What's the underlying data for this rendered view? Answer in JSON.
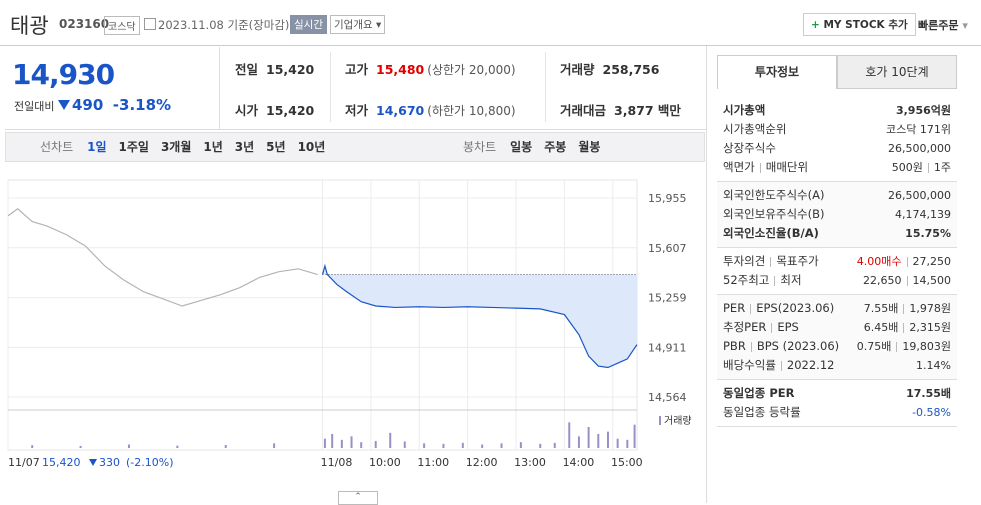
{
  "header": {
    "name": "태광",
    "code": "023160",
    "market": "코스닥",
    "date": "2023.11.08",
    "basis": "기준(장마감)",
    "realtime": "실시간",
    "company_info": "기업개요",
    "my_stock": "MY STOCK 추가",
    "quick_order": "빠른주문"
  },
  "quote": {
    "price": "14,930",
    "change_label": "전일대비",
    "change": "490",
    "change_pct": "-3.18%"
  },
  "summary": [
    [
      {
        "label": "전일",
        "value": "15,420"
      },
      {
        "label": "시가",
        "value": "15,420"
      }
    ],
    [
      {
        "label": "고가",
        "value": "15,480",
        "note": "(상한가 20,000)",
        "color": "#e00000"
      },
      {
        "label": "저가",
        "value": "14,670",
        "note": "(하한가 10,800)",
        "color": "#1a55c8"
      }
    ],
    [
      {
        "label": "거래량",
        "value": "258,756"
      },
      {
        "label": "거래대금",
        "value": "3,877 백만"
      }
    ]
  ],
  "chart_tabs": {
    "line_label": "선차트",
    "line_periods": [
      "1일",
      "1주일",
      "3개월",
      "1년",
      "3년",
      "5년",
      "10년"
    ],
    "candle_label": "봉차트",
    "candle_periods": [
      "일봉",
      "주봉",
      "월봉"
    ]
  },
  "chart_data": {
    "type": "line",
    "ylim": [
      14508,
      16011
    ],
    "yticks": [
      {
        "value": 15955,
        "label": "15,955"
      },
      {
        "value": 15607,
        "label": "15,607"
      },
      {
        "value": 15259,
        "label": "15,259"
      },
      {
        "value": 14911,
        "label": "14,911"
      },
      {
        "value": 14564,
        "label": "14,564"
      }
    ],
    "xlim": [
      0,
      13
    ],
    "xticks": [
      {
        "value": 0,
        "label": "11/07"
      },
      {
        "value": 6.5,
        "label": "11/08"
      },
      {
        "value": 7.5,
        "label": "10:00"
      },
      {
        "value": 8.5,
        "label": "11:00"
      },
      {
        "value": 9.5,
        "label": "12:00"
      },
      {
        "value": 10.5,
        "label": "13:00"
      },
      {
        "value": 11.5,
        "label": "14:00"
      },
      {
        "value": 12.5,
        "label": "15:00"
      }
    ],
    "grid": true,
    "reference_line": 15420,
    "fill_color": "#dde9fa",
    "series": [
      {
        "color": "#b4b4b4",
        "x": [
          0,
          0.2,
          0.5,
          0.8,
          1.2,
          1.6,
          2.0,
          2.4,
          2.8,
          3.2,
          3.6,
          4.0,
          4.4,
          4.8,
          5.2,
          5.6,
          6.0,
          6.4
        ],
        "values": [
          15830,
          15880,
          15790,
          15760,
          15700,
          15620,
          15480,
          15380,
          15300,
          15250,
          15200,
          15240,
          15280,
          15330,
          15400,
          15440,
          15460,
          15420
        ]
      },
      {
        "color": "#1a55c8",
        "x": [
          6.5,
          6.55,
          6.6,
          6.8,
          7.0,
          7.3,
          7.6,
          8.0,
          8.5,
          9.0,
          9.5,
          10.0,
          10.5,
          11.0,
          11.5,
          11.8,
          12.0,
          12.2,
          12.4,
          12.6,
          12.8,
          13.0
        ],
        "values": [
          15420,
          15480,
          15420,
          15350,
          15300,
          15230,
          15200,
          15190,
          15195,
          15190,
          15195,
          15190,
          15185,
          15180,
          15140,
          15000,
          14850,
          14780,
          14770,
          14800,
          14830,
          14930
        ]
      }
    ],
    "volume": {
      "label": "거래량",
      "ylim": [
        0,
        12000
      ],
      "color": "#9a90c8",
      "x": [
        0.5,
        1.5,
        2.5,
        3.5,
        4.5,
        5.5,
        6.55,
        6.7,
        6.9,
        7.1,
        7.3,
        7.6,
        7.9,
        8.2,
        8.6,
        9.0,
        9.4,
        9.8,
        10.2,
        10.6,
        11.0,
        11.3,
        11.6,
        11.8,
        12.0,
        12.2,
        12.4,
        12.6,
        12.8,
        12.95
      ],
      "values": [
        1200,
        900,
        1500,
        1000,
        1300,
        2000,
        4000,
        6000,
        3500,
        5000,
        2500,
        3000,
        6500,
        2800,
        2000,
        1800,
        2200,
        1500,
        2000,
        2500,
        1800,
        2200,
        11000,
        5000,
        9000,
        6000,
        7000,
        4000,
        3500,
        10000
      ]
    },
    "prev_day": {
      "close": "15,420",
      "change": "330",
      "change_pct": "(-2.10%)"
    }
  },
  "side": {
    "tabs": [
      "투자정보",
      "호가 10단계"
    ],
    "groups": [
      [
        {
          "labels": [
            "시가총액"
          ],
          "values": [
            "3,956억원"
          ],
          "bold": true
        },
        {
          "labels": [
            "시가총액순위"
          ],
          "values": [
            "코스닥 171위"
          ]
        },
        {
          "labels": [
            "상장주식수"
          ],
          "values": [
            "26,500,000"
          ]
        },
        {
          "labels": [
            "액면가",
            "매매단위"
          ],
          "values": [
            "500원",
            "1주"
          ]
        }
      ],
      [
        {
          "labels": [
            "외국인한도주식수(A)"
          ],
          "values": [
            "26,500,000"
          ]
        },
        {
          "labels": [
            "외국인보유주식수(B)"
          ],
          "values": [
            "4,174,139"
          ]
        },
        {
          "labels": [
            "외국인소진율(B/A)"
          ],
          "values": [
            "15.75%"
          ],
          "bold": true
        }
      ],
      [
        {
          "labels": [
            "투자의견",
            "목표주가"
          ],
          "values": [
            "4.00매수",
            "27,250"
          ],
          "value_colors": [
            "#e00000",
            "#333333"
          ]
        },
        {
          "labels": [
            "52주최고",
            "최저"
          ],
          "values": [
            "22,650",
            "14,500"
          ]
        }
      ],
      [
        {
          "labels": [
            "PER",
            "EPS(2023.06)"
          ],
          "values": [
            "7.55배",
            "1,978원"
          ]
        },
        {
          "labels": [
            "추정PER",
            "EPS"
          ],
          "values": [
            "6.45배",
            "2,315원"
          ]
        },
        {
          "labels": [
            "PBR",
            "BPS (2023.06)"
          ],
          "values": [
            "0.75배",
            "19,803원"
          ]
        },
        {
          "labels": [
            "배당수익률",
            "2022.12"
          ],
          "values": [
            "1.14%"
          ]
        }
      ],
      [
        {
          "labels": [
            "동일업종 PER"
          ],
          "values": [
            "17.55배"
          ],
          "bold": true
        },
        {
          "labels": [
            "동일업종 등락률"
          ],
          "values": [
            "-0.58%"
          ],
          "value_colors": [
            "#1a55c8"
          ]
        }
      ]
    ]
  }
}
